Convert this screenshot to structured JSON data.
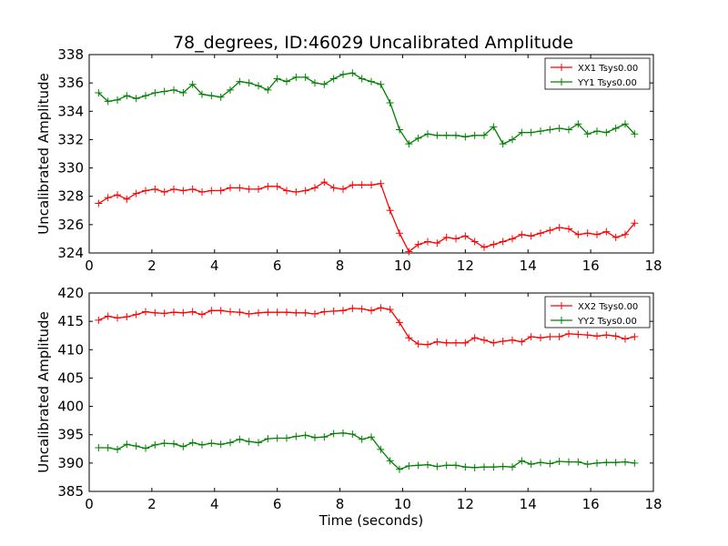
{
  "figure": {
    "title": "78_degrees, ID:46029 Uncalibrated Amplitude"
  },
  "chart_data": [
    {
      "type": "line",
      "title": "78_degrees, ID:46029 Uncalibrated Amplitude",
      "xlabel": "",
      "ylabel": "Uncalibrated Amplitude",
      "xlim": [
        0,
        18
      ],
      "ylim": [
        324,
        338
      ],
      "xticks": [
        "0",
        "2",
        "4",
        "6",
        "8",
        "10",
        "12",
        "14",
        "16",
        "18"
      ],
      "yticks": [
        "324",
        "326",
        "328",
        "330",
        "332",
        "334",
        "336",
        "338"
      ],
      "grid": false,
      "legend_position": "top-right",
      "series": [
        {
          "name": "XX1 Tsys0.00",
          "color": "#ff0000",
          "marker": "+",
          "x": [
            0.3,
            0.6,
            0.9,
            1.2,
            1.5,
            1.8,
            2.1,
            2.4,
            2.7,
            3.0,
            3.3,
            3.6,
            3.9,
            4.2,
            4.5,
            4.8,
            5.1,
            5.4,
            5.7,
            6.0,
            6.3,
            6.6,
            6.9,
            7.2,
            7.5,
            7.8,
            8.1,
            8.4,
            8.7,
            9.0,
            9.3,
            9.6,
            9.9,
            10.2,
            10.5,
            10.8,
            11.1,
            11.4,
            11.7,
            12.0,
            12.3,
            12.6,
            12.9,
            13.2,
            13.5,
            13.8,
            14.1,
            14.4,
            14.7,
            15.0,
            15.3,
            15.6,
            15.9,
            16.2,
            16.5,
            16.8,
            17.1,
            17.4
          ],
          "values": [
            327.5,
            327.9,
            328.1,
            327.8,
            328.2,
            328.4,
            328.5,
            328.3,
            328.5,
            328.4,
            328.5,
            328.3,
            328.4,
            328.4,
            328.6,
            328.6,
            328.5,
            328.5,
            328.7,
            328.7,
            328.4,
            328.3,
            328.4,
            328.6,
            329.0,
            328.6,
            328.5,
            328.8,
            328.8,
            328.8,
            328.9,
            327.0,
            325.4,
            324.1,
            324.6,
            324.8,
            324.7,
            325.1,
            325.0,
            325.2,
            324.8,
            324.4,
            324.6,
            324.8,
            325.0,
            325.3,
            325.2,
            325.4,
            325.6,
            325.8,
            325.7,
            325.3,
            325.4,
            325.3,
            325.5,
            325.1,
            325.3,
            326.1
          ]
        },
        {
          "name": "YY1 Tsys0.00",
          "color": "#008000",
          "marker": "+",
          "x": [
            0.3,
            0.6,
            0.9,
            1.2,
            1.5,
            1.8,
            2.1,
            2.4,
            2.7,
            3.0,
            3.3,
            3.6,
            3.9,
            4.2,
            4.5,
            4.8,
            5.1,
            5.4,
            5.7,
            6.0,
            6.3,
            6.6,
            6.9,
            7.2,
            7.5,
            7.8,
            8.1,
            8.4,
            8.7,
            9.0,
            9.3,
            9.6,
            9.9,
            10.2,
            10.5,
            10.8,
            11.1,
            11.4,
            11.7,
            12.0,
            12.3,
            12.6,
            12.9,
            13.2,
            13.5,
            13.8,
            14.1,
            14.4,
            14.7,
            15.0,
            15.3,
            15.6,
            15.9,
            16.2,
            16.5,
            16.8,
            17.1,
            17.4
          ],
          "values": [
            335.3,
            334.7,
            334.8,
            335.1,
            334.9,
            335.1,
            335.3,
            335.4,
            335.5,
            335.3,
            335.9,
            335.2,
            335.1,
            335.0,
            335.5,
            336.1,
            336.0,
            335.8,
            335.5,
            336.3,
            336.1,
            336.4,
            336.4,
            336.0,
            335.9,
            336.3,
            336.6,
            336.7,
            336.3,
            336.1,
            335.9,
            334.6,
            332.7,
            331.7,
            332.1,
            332.4,
            332.3,
            332.3,
            332.3,
            332.2,
            332.3,
            332.3,
            332.9,
            331.7,
            332.0,
            332.5,
            332.5,
            332.6,
            332.7,
            332.8,
            332.7,
            333.1,
            332.4,
            332.6,
            332.5,
            332.8,
            333.1,
            332.4
          ]
        }
      ]
    },
    {
      "type": "line",
      "title": "",
      "xlabel": "Time (seconds)",
      "ylabel": "Uncalibrated Amplitude",
      "xlim": [
        0,
        18
      ],
      "ylim": [
        385,
        420
      ],
      "xticks": [
        "0",
        "2",
        "4",
        "6",
        "8",
        "10",
        "12",
        "14",
        "16",
        "18"
      ],
      "yticks": [
        "385",
        "390",
        "395",
        "400",
        "405",
        "410",
        "415",
        "420"
      ],
      "grid": false,
      "legend_position": "top-right",
      "series": [
        {
          "name": "XX2 Tsys0.00",
          "color": "#ff0000",
          "marker": "+",
          "x": [
            0.3,
            0.6,
            0.9,
            1.2,
            1.5,
            1.8,
            2.1,
            2.4,
            2.7,
            3.0,
            3.3,
            3.6,
            3.9,
            4.2,
            4.5,
            4.8,
            5.1,
            5.4,
            5.7,
            6.0,
            6.3,
            6.6,
            6.9,
            7.2,
            7.5,
            7.8,
            8.1,
            8.4,
            8.7,
            9.0,
            9.3,
            9.6,
            9.9,
            10.2,
            10.5,
            10.8,
            11.1,
            11.4,
            11.7,
            12.0,
            12.3,
            12.6,
            12.9,
            13.2,
            13.5,
            13.8,
            14.1,
            14.4,
            14.7,
            15.0,
            15.3,
            15.6,
            15.9,
            16.2,
            16.5,
            16.8,
            17.1,
            17.4
          ],
          "values": [
            415.2,
            415.9,
            415.6,
            415.8,
            416.2,
            416.7,
            416.5,
            416.4,
            416.6,
            416.5,
            416.7,
            416.2,
            416.9,
            416.9,
            416.7,
            416.6,
            416.3,
            416.5,
            416.6,
            416.6,
            416.6,
            416.5,
            416.5,
            416.3,
            416.7,
            416.8,
            416.9,
            417.3,
            417.2,
            416.9,
            417.4,
            417.1,
            414.8,
            412.1,
            411.0,
            410.9,
            411.4,
            411.2,
            411.2,
            411.2,
            412.1,
            411.7,
            411.2,
            411.5,
            411.7,
            411.4,
            412.3,
            412.1,
            412.3,
            412.3,
            412.8,
            412.7,
            412.6,
            412.4,
            412.6,
            412.4,
            411.9,
            412.3
          ]
        },
        {
          "name": "YY2 Tsys0.00",
          "color": "#008000",
          "marker": "+",
          "x": [
            0.3,
            0.6,
            0.9,
            1.2,
            1.5,
            1.8,
            2.1,
            2.4,
            2.7,
            3.0,
            3.3,
            3.6,
            3.9,
            4.2,
            4.5,
            4.8,
            5.1,
            5.4,
            5.7,
            6.0,
            6.3,
            6.6,
            6.9,
            7.2,
            7.5,
            7.8,
            8.1,
            8.4,
            8.7,
            9.0,
            9.3,
            9.6,
            9.9,
            10.2,
            10.5,
            10.8,
            11.1,
            11.4,
            11.7,
            12.0,
            12.3,
            12.6,
            12.9,
            13.2,
            13.5,
            13.8,
            14.1,
            14.4,
            14.7,
            15.0,
            15.3,
            15.6,
            15.9,
            16.2,
            16.5,
            16.8,
            17.1,
            17.4
          ],
          "values": [
            392.7,
            392.7,
            392.4,
            393.3,
            393.0,
            392.6,
            393.2,
            393.5,
            393.4,
            392.9,
            393.6,
            393.2,
            393.5,
            393.3,
            393.6,
            394.2,
            393.8,
            393.6,
            394.3,
            394.4,
            394.4,
            394.7,
            394.9,
            394.5,
            394.6,
            395.2,
            395.3,
            395.1,
            394.2,
            394.6,
            392.4,
            390.4,
            388.9,
            389.5,
            389.6,
            389.7,
            389.4,
            389.6,
            389.6,
            389.3,
            389.2,
            389.3,
            389.3,
            389.4,
            389.3,
            390.4,
            389.8,
            390.1,
            389.9,
            390.3,
            390.2,
            390.2,
            389.8,
            390.0,
            390.1,
            390.1,
            390.2,
            390.0
          ]
        }
      ]
    }
  ]
}
